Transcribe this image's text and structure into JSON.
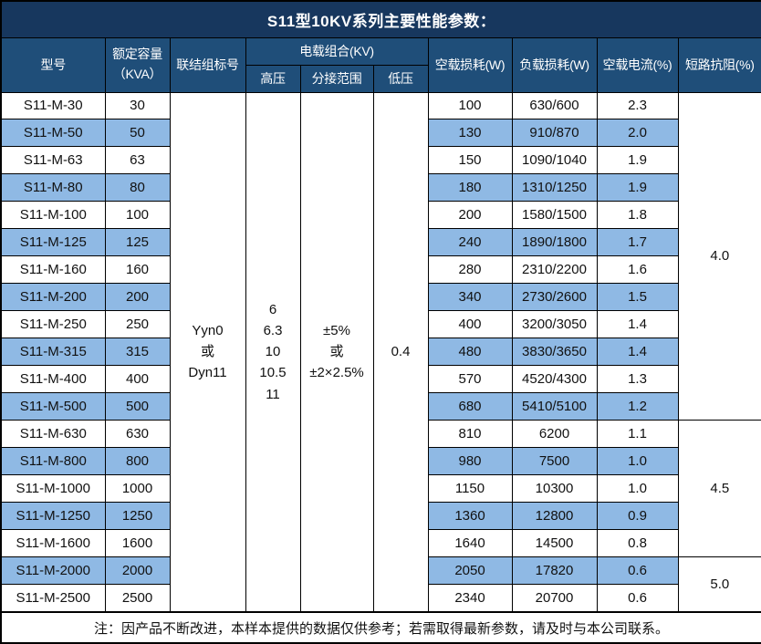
{
  "title": "S11型10KV系列主要性能参数：",
  "table": {
    "headers": {
      "model": "型号",
      "capacity": "额定容量\n（KVA）",
      "connection": "联结组标号",
      "voltage_group": "电载组合(KV)",
      "high_voltage": "高压",
      "tap_range": "分接范围",
      "low_voltage": "低压",
      "no_load_loss": "空载损耗(W)",
      "load_loss": "负载损耗(W)",
      "no_load_current": "空载电流(%)",
      "impedance": "短路抗阻(%)"
    },
    "merged": {
      "connection": "Yyn0\n或\nDyn11",
      "high_voltage": "6\n6.3\n10\n10.5\n11",
      "tap_range": "±5%\n或\n±2×2.5%",
      "low_voltage": "0.4",
      "impedance_groups": [
        {
          "value": "4.0",
          "rows": 12
        },
        {
          "value": "4.5",
          "rows": 5
        },
        {
          "value": "5.0",
          "rows": 2
        }
      ]
    },
    "rows": [
      {
        "model": "S11-M-30",
        "capacity": "30",
        "no_load_loss": "100",
        "load_loss": "630/600",
        "no_load_current": "2.3"
      },
      {
        "model": "S11-M-50",
        "capacity": "50",
        "no_load_loss": "130",
        "load_loss": "910/870",
        "no_load_current": "2.0"
      },
      {
        "model": "S11-M-63",
        "capacity": "63",
        "no_load_loss": "150",
        "load_loss": "1090/1040",
        "no_load_current": "1.9"
      },
      {
        "model": "S11-M-80",
        "capacity": "80",
        "no_load_loss": "180",
        "load_loss": "1310/1250",
        "no_load_current": "1.9"
      },
      {
        "model": "S11-M-100",
        "capacity": "100",
        "no_load_loss": "200",
        "load_loss": "1580/1500",
        "no_load_current": "1.8"
      },
      {
        "model": "S11-M-125",
        "capacity": "125",
        "no_load_loss": "240",
        "load_loss": "1890/1800",
        "no_load_current": "1.7"
      },
      {
        "model": "S11-M-160",
        "capacity": "160",
        "no_load_loss": "280",
        "load_loss": "2310/2200",
        "no_load_current": "1.6"
      },
      {
        "model": "S11-M-200",
        "capacity": "200",
        "no_load_loss": "340",
        "load_loss": "2730/2600",
        "no_load_current": "1.5"
      },
      {
        "model": "S11-M-250",
        "capacity": "250",
        "no_load_loss": "400",
        "load_loss": "3200/3050",
        "no_load_current": "1.4"
      },
      {
        "model": "S11-M-315",
        "capacity": "315",
        "no_load_loss": "480",
        "load_loss": "3830/3650",
        "no_load_current": "1.4"
      },
      {
        "model": "S11-M-400",
        "capacity": "400",
        "no_load_loss": "570",
        "load_loss": "4520/4300",
        "no_load_current": "1.3"
      },
      {
        "model": "S11-M-500",
        "capacity": "500",
        "no_load_loss": "680",
        "load_loss": "5410/5100",
        "no_load_current": "1.2"
      },
      {
        "model": "S11-M-630",
        "capacity": "630",
        "no_load_loss": "810",
        "load_loss": "6200",
        "no_load_current": "1.1"
      },
      {
        "model": "S11-M-800",
        "capacity": "800",
        "no_load_loss": "980",
        "load_loss": "7500",
        "no_load_current": "1.0"
      },
      {
        "model": "S11-M-1000",
        "capacity": "1000",
        "no_load_loss": "1150",
        "load_loss": "10300",
        "no_load_current": "1.0"
      },
      {
        "model": "S11-M-1250",
        "capacity": "1250",
        "no_load_loss": "1360",
        "load_loss": "12800",
        "no_load_current": "0.9"
      },
      {
        "model": "S11-M-1600",
        "capacity": "1600",
        "no_load_loss": "1640",
        "load_loss": "14500",
        "no_load_current": "0.8"
      },
      {
        "model": "S11-M-2000",
        "capacity": "2000",
        "no_load_loss": "2050",
        "load_loss": "17820",
        "no_load_current": "0.6"
      },
      {
        "model": "S11-M-2500",
        "capacity": "2500",
        "no_load_loss": "2340",
        "load_loss": "20700",
        "no_load_current": "0.6"
      }
    ]
  },
  "footer_note": "注：因产品不断改进，本样本提供的数据仅供参考；若需取得最新参数，请及时与本公司联系。",
  "colors": {
    "title_bg": "#17375E",
    "header_bg": "#1F4E79",
    "row_alt_bg": "#8FB9E4",
    "row_bg": "#FFFFFF",
    "border": "#000000",
    "header_text": "#FFFFFF",
    "body_text": "#111111"
  }
}
